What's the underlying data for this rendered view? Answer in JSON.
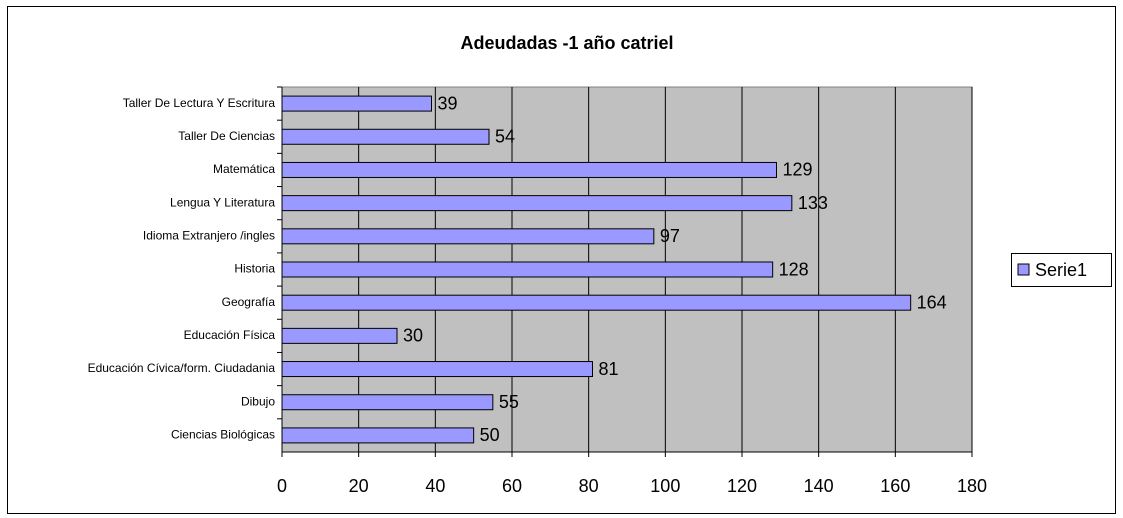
{
  "chart_data": {
    "type": "bar",
    "orientation": "horizontal",
    "title": "Adeudadas -1 año catriel",
    "categories": [
      "Taller De Lectura Y Escritura",
      "Taller De Ciencias",
      "Matemática",
      "Lengua Y Literatura",
      "Idioma Extranjero /ingles",
      "Historia",
      "Geografía",
      "Educación Física",
      "Educación Cívica/form. Ciudadania",
      "Dibujo",
      "Ciencias Biológicas"
    ],
    "series": [
      {
        "name": "Serie1",
        "color": "#9999ff",
        "values": [
          39,
          54,
          129,
          133,
          97,
          128,
          164,
          30,
          81,
          55,
          50
        ]
      }
    ],
    "xlim": [
      0,
      180
    ],
    "xticks": [
      0,
      20,
      40,
      60,
      80,
      100,
      120,
      140,
      160,
      180
    ],
    "grid": true,
    "legend": "right"
  }
}
